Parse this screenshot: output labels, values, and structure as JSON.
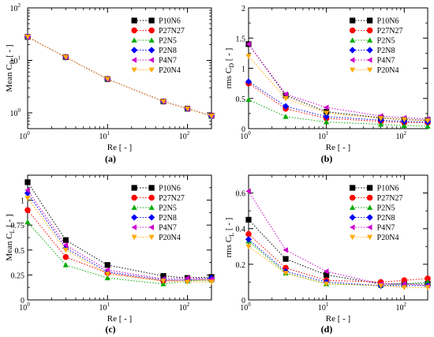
{
  "chart_data": [
    {
      "type": "scatter",
      "panel_label": "(a)",
      "ylabel_main": "Mean C",
      "ylabel_sub": "D",
      "ylabel_tail": " [ - ]",
      "xlabel": "Re [ - ]",
      "x_scale": "log",
      "y_scale": "log",
      "xlim": [
        1,
        200
      ],
      "ylim": [
        0.5,
        100
      ],
      "x_ticks": [
        {
          "value": 1,
          "base": "10",
          "exp": "0"
        },
        {
          "value": 10,
          "base": "10",
          "exp": "1"
        },
        {
          "value": 100,
          "base": "10",
          "exp": "2"
        }
      ],
      "y_ticks": [
        {
          "value": 1,
          "base": "10",
          "exp": "0"
        },
        {
          "value": 10,
          "base": "10",
          "exp": "1"
        },
        {
          "value": 100,
          "base": "10",
          "exp": "2"
        }
      ],
      "legend_position": "top-right",
      "x": [
        1,
        3,
        10,
        50,
        100,
        200
      ],
      "series": [
        {
          "name": "P10N6",
          "values": [
            28,
            11.5,
            4.4,
            1.65,
            1.2,
            0.88
          ]
        },
        {
          "name": "P27N27",
          "values": [
            28,
            11.5,
            4.4,
            1.65,
            1.2,
            0.88
          ]
        },
        {
          "name": "P2N5",
          "values": [
            28,
            11.5,
            4.4,
            1.65,
            1.2,
            0.86
          ]
        },
        {
          "name": "P2N8",
          "values": [
            28,
            11.5,
            4.4,
            1.65,
            1.2,
            0.87
          ]
        },
        {
          "name": "P4N7",
          "values": [
            28,
            11.5,
            4.4,
            1.65,
            1.2,
            0.87
          ]
        },
        {
          "name": "P20N4",
          "values": [
            28,
            11.5,
            4.4,
            1.65,
            1.2,
            0.87
          ]
        }
      ]
    },
    {
      "type": "scatter",
      "panel_label": "(b)",
      "ylabel_main": "rms C",
      "ylabel_sub": "D",
      "ylabel_tail": " [ - ]",
      "xlabel": "Re [ - ]",
      "x_scale": "log",
      "y_scale": "linear",
      "xlim": [
        1,
        200
      ],
      "ylim": [
        0,
        2
      ],
      "x_ticks": [
        {
          "value": 1,
          "base": "10",
          "exp": "0"
        },
        {
          "value": 10,
          "base": "10",
          "exp": "1"
        },
        {
          "value": 100,
          "base": "10",
          "exp": "2"
        }
      ],
      "y_ticks": [
        {
          "value": 0,
          "label": "0"
        },
        {
          "value": 0.5,
          "label": "0.5"
        },
        {
          "value": 1,
          "label": "1"
        },
        {
          "value": 1.5,
          "label": "1.5"
        },
        {
          "value": 2,
          "label": "2"
        }
      ],
      "legend_position": "top-right",
      "x": [
        1,
        3,
        10,
        50,
        100,
        200
      ],
      "series": [
        {
          "name": "P10N6",
          "values": [
            1.4,
            0.55,
            0.28,
            0.18,
            0.15,
            0.14
          ]
        },
        {
          "name": "P27N27",
          "values": [
            0.75,
            0.33,
            0.17,
            0.12,
            0.1,
            0.1
          ]
        },
        {
          "name": "P2N5",
          "values": [
            0.48,
            0.2,
            0.11,
            0.07,
            0.05,
            0.04
          ]
        },
        {
          "name": "P2N8",
          "values": [
            0.78,
            0.37,
            0.2,
            0.14,
            0.12,
            0.11
          ]
        },
        {
          "name": "P4N7",
          "values": [
            1.4,
            0.57,
            0.35,
            0.21,
            0.18,
            0.16
          ]
        },
        {
          "name": "P20N4",
          "values": [
            1.2,
            0.5,
            0.26,
            0.17,
            0.15,
            0.13
          ]
        }
      ]
    },
    {
      "type": "scatter",
      "panel_label": "(c)",
      "ylabel_main": "Mean C",
      "ylabel_sub": "L",
      "ylabel_tail": " [ - ]",
      "xlabel": "Re [ - ]",
      "x_scale": "log",
      "y_scale": "linear",
      "xlim": [
        1,
        200
      ],
      "ylim": [
        0,
        1.25
      ],
      "x_ticks": [
        {
          "value": 1,
          "base": "10",
          "exp": "0"
        },
        {
          "value": 10,
          "base": "10",
          "exp": "1"
        },
        {
          "value": 100,
          "base": "10",
          "exp": "2"
        }
      ],
      "y_ticks": [
        {
          "value": 0,
          "label": "0"
        },
        {
          "value": 0.25,
          "label": "0.25"
        },
        {
          "value": 0.5,
          "label": "0.5"
        },
        {
          "value": 0.75,
          "label": "0.75"
        },
        {
          "value": 1,
          "label": "1"
        }
      ],
      "legend_position": "top-right",
      "x": [
        1,
        3,
        10,
        50,
        100,
        200
      ],
      "series": [
        {
          "name": "P10N6",
          "values": [
            1.18,
            0.6,
            0.35,
            0.24,
            0.22,
            0.23
          ]
        },
        {
          "name": "P27N27",
          "values": [
            0.9,
            0.43,
            0.27,
            0.19,
            0.2,
            0.2
          ]
        },
        {
          "name": "P2N5",
          "values": [
            0.78,
            0.35,
            0.22,
            0.16,
            0.19,
            0.2
          ]
        },
        {
          "name": "P2N8",
          "values": [
            1.07,
            0.52,
            0.28,
            0.2,
            0.2,
            0.22
          ]
        },
        {
          "name": "P4N7",
          "values": [
            1.1,
            0.55,
            0.3,
            0.21,
            0.22,
            0.21
          ]
        },
        {
          "name": "P20N4",
          "values": [
            1.02,
            0.5,
            0.26,
            0.19,
            0.18,
            0.18
          ]
        }
      ]
    },
    {
      "type": "scatter",
      "panel_label": "(d)",
      "ylabel_main": "rms C",
      "ylabel_sub": "L",
      "ylabel_tail": " [ - ]",
      "xlabel": "Re [ - ]",
      "x_scale": "log",
      "y_scale": "linear",
      "xlim": [
        1,
        200
      ],
      "ylim": [
        0,
        0.7
      ],
      "x_ticks": [
        {
          "value": 1,
          "base": "10",
          "exp": "0"
        },
        {
          "value": 10,
          "base": "10",
          "exp": "1"
        },
        {
          "value": 100,
          "base": "10",
          "exp": "2"
        }
      ],
      "y_ticks": [
        {
          "value": 0,
          "label": "0"
        },
        {
          "value": 0.2,
          "label": "0.2"
        },
        {
          "value": 0.4,
          "label": "0.4"
        },
        {
          "value": 0.6,
          "label": "0.6"
        }
      ],
      "legend_position": "top-right",
      "x": [
        1,
        3,
        10,
        50,
        100,
        200
      ],
      "series": [
        {
          "name": "P10N6",
          "values": [
            0.45,
            0.23,
            0.14,
            0.09,
            0.09,
            0.09
          ]
        },
        {
          "name": "P27N27",
          "values": [
            0.37,
            0.18,
            0.11,
            0.1,
            0.11,
            0.12
          ]
        },
        {
          "name": "P2N5",
          "values": [
            0.33,
            0.15,
            0.09,
            0.08,
            0.09,
            0.1
          ]
        },
        {
          "name": "P2N8",
          "values": [
            0.34,
            0.16,
            0.1,
            0.08,
            0.08,
            0.08
          ]
        },
        {
          "name": "P4N7",
          "values": [
            0.61,
            0.28,
            0.16,
            0.09,
            0.09,
            0.08
          ]
        },
        {
          "name": "P20N4",
          "values": [
            0.3,
            0.15,
            0.09,
            0.08,
            0.07,
            0.07
          ]
        }
      ]
    }
  ],
  "series_styles": [
    {
      "name": "P10N6",
      "color": "#000000",
      "marker": "square"
    },
    {
      "name": "P27N27",
      "color": "#ff0000",
      "marker": "circle"
    },
    {
      "name": "P2N5",
      "color": "#00aa00",
      "marker": "triangle-up"
    },
    {
      "name": "P2N8",
      "color": "#0000ff",
      "marker": "diamond"
    },
    {
      "name": "P4N7",
      "color": "#cc00cc",
      "marker": "triangle-left"
    },
    {
      "name": "P20N4",
      "color": "#ffaa00",
      "marker": "triangle-down"
    }
  ]
}
